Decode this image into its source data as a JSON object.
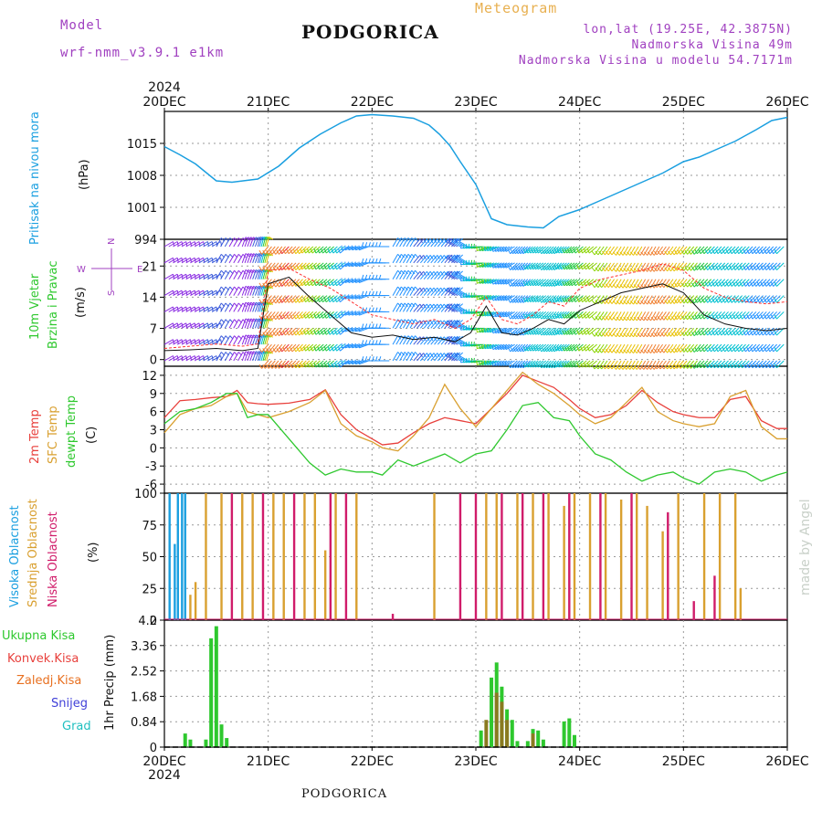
{
  "header": {
    "model_label": "Model",
    "model_name": "wrf-nmm_v3.9.1 e1km",
    "city": "PODGORICA",
    "meteogram": "Meteogram",
    "lonlat": "lon,lat (19.25E, 42.3875N)",
    "elevation": "Nadmorska Visina 49m",
    "model_elevation": "Nadmorska Visina u modelu 54.7171m",
    "footer_city": "PODGORICA",
    "watermark": "made by Angel"
  },
  "colors": {
    "pressure": "#1a9fe0",
    "temp2m": "#e8403c",
    "sfc": "#d9a030",
    "dew": "#2ec82e",
    "high_cloud": "#1a9fe0",
    "mid_cloud": "#d9a030",
    "low_cloud": "#d01c6a",
    "total_precip": "#2ec82e",
    "conv_precip": "#e8403c",
    "frozen_precip": "#e87020",
    "snow": "#4040d8",
    "hail": "#20c0c0",
    "header_purple": "#a040c0",
    "header_orange": "#e8b050"
  },
  "chart_data": [
    {
      "type": "line",
      "name": "pressure",
      "ylabel_main": "Pritisak na nivou mora",
      "ylabel_unit": "(hPa)",
      "x_dates": [
        "20DEC",
        "21DEC",
        "22DEC",
        "23DEC",
        "24DEC",
        "25DEC",
        "26DEC"
      ],
      "x_year": "2024",
      "yticks": [
        "1015",
        "1008",
        "1001",
        "994"
      ],
      "ylim": [
        994,
        1022
      ],
      "x": [
        0,
        0.15,
        0.3,
        0.5,
        0.65,
        0.9,
        1.1,
        1.3,
        1.5,
        1.7,
        1.85,
        2.0,
        2.2,
        2.4,
        2.55,
        2.65,
        2.75,
        2.85,
        3.0,
        3.15,
        3.3,
        3.5,
        3.65,
        3.8,
        4.0,
        4.2,
        4.4,
        4.6,
        4.8,
        5.0,
        5.15,
        5.3,
        5.5,
        5.7,
        5.85,
        6.0
      ],
      "values": [
        1014.3,
        1012.5,
        1010.5,
        1006.8,
        1006.5,
        1007.2,
        1010,
        1014,
        1017,
        1019.5,
        1021,
        1021.3,
        1021,
        1020.5,
        1019,
        1017,
        1014.5,
        1011,
        1006,
        998.5,
        997.2,
        996.7,
        996.5,
        999,
        1000.5,
        1002.5,
        1004.5,
        1006.5,
        1008.5,
        1011,
        1012,
        1013.5,
        1015.5,
        1018,
        1020,
        1020.7
      ]
    },
    {
      "type": "scatter",
      "name": "wind",
      "ylabel_main": "10m Vjetar",
      "ylabel_sub": "Brzina i Pravac",
      "ylabel_unit": "(m/s)",
      "yticks": [
        "21",
        "14",
        "7",
        "0"
      ],
      "ylim": [
        -1.5,
        27
      ],
      "compass": {
        "n": "N",
        "s": "S",
        "w": "W",
        "e": "E"
      },
      "x": [
        0,
        0.25,
        0.5,
        0.75,
        0.9,
        1.0,
        1.2,
        1.4,
        1.6,
        1.8,
        2.0,
        2.2,
        2.4,
        2.6,
        2.8,
        2.95,
        3.1,
        3.25,
        3.4,
        3.55,
        3.7,
        3.85,
        4.0,
        4.2,
        4.4,
        4.6,
        4.8,
        5.0,
        5.2,
        5.4,
        5.6,
        5.8,
        6.0
      ],
      "speed": [
        2,
        2.2,
        2.5,
        2,
        2.5,
        17,
        18.5,
        14,
        10,
        6,
        5,
        5.5,
        4.5,
        5,
        4,
        6,
        12,
        6,
        5.5,
        7,
        9,
        8,
        11,
        13,
        15,
        16,
        17,
        15,
        10,
        8,
        7,
        6.5,
        7
      ],
      "gust": [
        2.5,
        3,
        3.5,
        3,
        3.5,
        20,
        20.5,
        18,
        16,
        13,
        10,
        9,
        8,
        9,
        7,
        9,
        14,
        9,
        8,
        10,
        13,
        12,
        16,
        18,
        19,
        20,
        21.5,
        20,
        16,
        14,
        13,
        12.5,
        13
      ],
      "direction_deg": [
        60,
        60,
        30,
        20,
        15,
        220,
        225,
        230,
        230,
        250,
        270,
        30,
        40,
        40,
        300,
        260,
        245,
        240,
        225,
        230,
        225,
        230,
        230,
        215,
        210,
        210,
        215,
        220,
        225,
        225,
        225,
        225,
        225
      ]
    },
    {
      "type": "line",
      "name": "temperature",
      "ylabel_main": "2m Temp",
      "ylabel_sub": "SFC Temp",
      "ylabel_sub2": "dewpt Temp",
      "ylabel_unit": "(C)",
      "yticks": [
        "12",
        "9",
        "6",
        "3",
        "0",
        "-3",
        "-6"
      ],
      "ylim": [
        -7.5,
        13.5
      ],
      "x": [
        0,
        0.15,
        0.3,
        0.45,
        0.6,
        0.7,
        0.8,
        0.9,
        1.0,
        1.2,
        1.4,
        1.55,
        1.7,
        1.85,
        2.0,
        2.1,
        2.25,
        2.4,
        2.55,
        2.7,
        2.85,
        3.0,
        3.15,
        3.3,
        3.45,
        3.6,
        3.75,
        3.9,
        4.0,
        4.15,
        4.3,
        4.45,
        4.6,
        4.75,
        4.9,
        5.0,
        5.15,
        5.3,
        5.45,
        5.6,
        5.75,
        5.9,
        6.0
      ],
      "series": [
        {
          "name": "2m Temp",
          "values": [
            5,
            7.8,
            8,
            8.3,
            8.5,
            9.5,
            7.5,
            7.3,
            7.2,
            7.4,
            8,
            9.6,
            5.5,
            3,
            1.5,
            0.5,
            0.8,
            2.5,
            4,
            5,
            4.5,
            4,
            6.5,
            9,
            12,
            11,
            10,
            8,
            6.5,
            5,
            5.5,
            7,
            9.5,
            7.5,
            6,
            5.5,
            5,
            5,
            8,
            8.5,
            4.5,
            3.2,
            3.2
          ]
        },
        {
          "name": "SFC Temp",
          "values": [
            2.5,
            5.5,
            6.5,
            7,
            8.5,
            9,
            6,
            5.5,
            5,
            6,
            7.5,
            9.5,
            4,
            2,
            1,
            0,
            -0.5,
            2,
            5,
            10.5,
            6.5,
            3.5,
            6.5,
            9.5,
            12.5,
            10.5,
            9,
            7,
            5.5,
            4,
            5,
            7.5,
            10,
            6,
            4.5,
            4,
            3.5,
            4,
            8.5,
            9.5,
            3.5,
            1.5,
            1.5
          ]
        },
        {
          "name": "dewpt Temp",
          "values": [
            4,
            6,
            6.5,
            7.5,
            9,
            9,
            5,
            5.5,
            5.5,
            1.5,
            -2.5,
            -4.5,
            -3.5,
            -4,
            -4,
            -4.5,
            -2,
            -3,
            -2,
            -1,
            -2.5,
            -1,
            -0.5,
            3,
            7,
            7.5,
            5,
            4.5,
            2,
            -1,
            -2,
            -4,
            -5.5,
            -4.5,
            -4,
            -5,
            -6,
            -4,
            -3.5,
            -4,
            -5.5,
            -4.5,
            -4
          ]
        }
      ]
    },
    {
      "type": "bar",
      "name": "clouds",
      "ylabel_main": "Visoka Oblacnost",
      "ylabel_sub": "Srednja Oblacnost",
      "ylabel_sub2": "Niska Oblacnost",
      "ylabel_unit": "(%)",
      "yticks": [
        "100",
        "75",
        "50",
        "25",
        "0"
      ],
      "ylim": [
        0,
        100
      ],
      "series": [
        {
          "name": "Visoka Oblacnost",
          "x": [
            0.05,
            0.1,
            0.13,
            0.17,
            0.2
          ],
          "values": [
            100,
            60,
            100,
            100,
            100
          ]
        },
        {
          "name": "Srednja Oblacnost",
          "x": [
            0.25,
            0.3,
            0.4,
            0.55,
            0.75,
            0.85,
            1.05,
            1.15,
            1.35,
            1.45,
            1.55,
            1.65,
            1.85,
            2.6,
            3.1,
            3.2,
            3.4,
            3.55,
            3.7,
            3.85,
            3.95,
            4.1,
            4.25,
            4.4,
            4.55,
            4.65,
            4.8,
            4.95,
            5.2,
            5.35,
            5.5,
            5.55
          ],
          "values": [
            20,
            30,
            100,
            100,
            100,
            100,
            100,
            100,
            100,
            100,
            55,
            100,
            100,
            100,
            100,
            100,
            100,
            100,
            100,
            90,
            100,
            100,
            100,
            95,
            100,
            90,
            70,
            100,
            100,
            100,
            100,
            25
          ]
        },
        {
          "name": "Niska Oblacnost",
          "x": [
            0.65,
            0.95,
            1.25,
            1.6,
            1.75,
            2.2,
            2.85,
            3.0,
            3.25,
            3.45,
            3.65,
            3.9,
            4.2,
            4.5,
            4.85,
            5.1,
            5.3
          ],
          "values": [
            100,
            100,
            100,
            100,
            100,
            5,
            100,
            100,
            100,
            100,
            100,
            100,
            100,
            100,
            85,
            15,
            35
          ]
        }
      ]
    },
    {
      "type": "bar",
      "name": "precip",
      "ylabel_main": "1hr Precip",
      "ylabel_unit": "(mm)",
      "yticks": [
        "4.2",
        "3.36",
        "2.52",
        "1.68",
        "0.84",
        "0"
      ],
      "ylim": [
        0,
        4.2
      ],
      "legend": [
        "Ukupna Kisa",
        "Konvek.Kisa",
        "Zaledj.Kisa",
        "Snijeg",
        "Grad"
      ],
      "x_dates": [
        "20DEC",
        "21DEC",
        "22DEC",
        "23DEC",
        "24DEC",
        "25DEC",
        "26DEC"
      ],
      "x_year": "2024",
      "series": [
        {
          "name": "Ukupna Kisa",
          "x": [
            0.2,
            0.25,
            0.4,
            0.45,
            0.5,
            0.55,
            0.6,
            3.05,
            3.15,
            3.2,
            3.25,
            3.3,
            3.35,
            3.4,
            3.5,
            3.55,
            3.6,
            3.65,
            3.85,
            3.9,
            3.95
          ],
          "values": [
            0.45,
            0.25,
            0.25,
            3.6,
            4.0,
            0.75,
            0.3,
            0.55,
            2.3,
            2.8,
            2.0,
            1.25,
            0.9,
            0.2,
            0.2,
            0.6,
            0.55,
            0.25,
            0.85,
            0.95,
            0.4
          ]
        },
        {
          "name": "Konvek.Kisa",
          "x": [
            3.1,
            3.2,
            3.25,
            3.3,
            3.55
          ],
          "values": [
            0.9,
            1.8,
            1.5,
            0.9,
            0.45
          ]
        }
      ]
    }
  ]
}
